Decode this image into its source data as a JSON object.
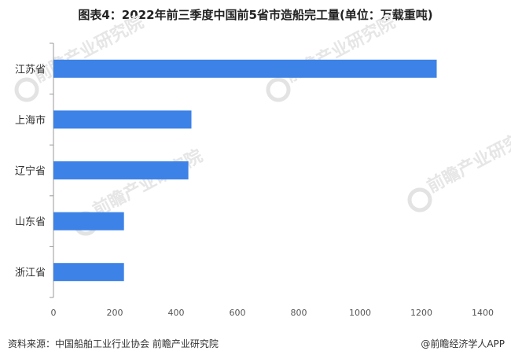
{
  "title": "图表4：2022年前三季度中国前5省市造船完工量(单位：万载重吨)",
  "source": "资料来源：中国船舶工业行业协会 前瞻产业研究院",
  "brand": "@前瞻经济学人APP",
  "watermark": "前瞻产业研究院",
  "colors": {
    "bar": "#3d82e6",
    "axis": "#999999"
  },
  "chart_data": {
    "type": "bar",
    "orientation": "horizontal",
    "categories": [
      "江苏省",
      "上海市",
      "辽宁省",
      "山东省",
      "浙江省"
    ],
    "values": [
      1250,
      450,
      440,
      230,
      230
    ],
    "xlim": [
      0,
      1400
    ],
    "xticks": [
      0,
      200,
      400,
      600,
      800,
      1000,
      1200,
      1400
    ],
    "grid": false
  }
}
